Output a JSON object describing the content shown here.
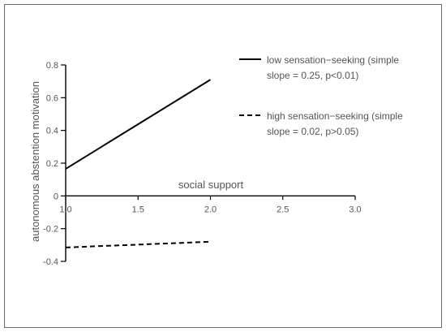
{
  "chart_data": {
    "type": "line",
    "xlabel": "social support",
    "ylabel": "autonomous abstention motivation",
    "xlim": [
      1.0,
      3.0
    ],
    "ylim": [
      -0.4,
      0.8
    ],
    "xticks": [
      1.0,
      1.5,
      2.0,
      2.5,
      3.0
    ],
    "xtick_labels": [
      "1.0",
      "1.5",
      "2.0",
      "2.5",
      "3.0"
    ],
    "yticks": [
      0.8,
      0.6,
      0.4,
      0.2,
      0,
      -0.2,
      -0.4
    ],
    "ytick_labels": [
      "0.8",
      "0.6",
      "0.4",
      "0.2",
      "0",
      "-0.2",
      "-0.4"
    ],
    "grid": false,
    "legend_position": "top-right",
    "series": [
      {
        "name": "low sensation−seeking (simple slope = 0.25,  p<0.01)",
        "legend_lines": [
          "low sensation−seeking (simple",
          "slope = 0.25,  p<0.01)"
        ],
        "style": "solid",
        "color": "#000000",
        "x": [
          1.0,
          2.0
        ],
        "y": [
          0.165,
          0.71
        ]
      },
      {
        "name": "high sensation−seeking (simple slope = 0.02,  p>0.05)",
        "legend_lines": [
          "high sensation−seeking (simple",
          "slope = 0.02,  p>0.05)"
        ],
        "style": "dashed",
        "color": "#000000",
        "x": [
          1.0,
          2.0
        ],
        "y": [
          -0.315,
          -0.28
        ]
      }
    ]
  }
}
